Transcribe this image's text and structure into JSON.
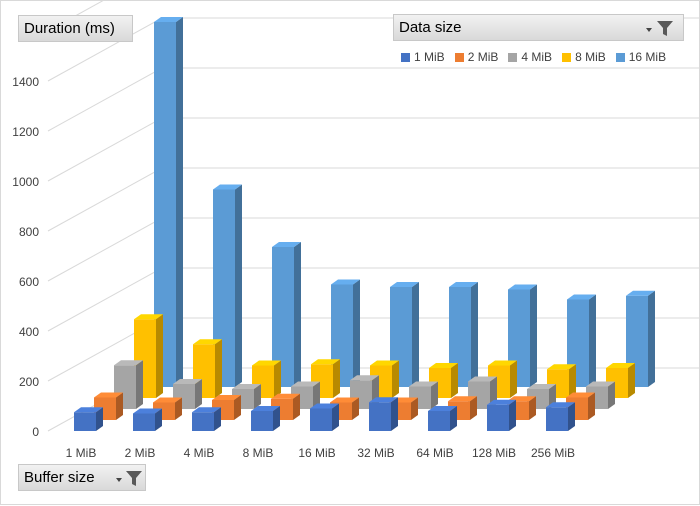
{
  "pivot": {
    "value_button": "Duration (ms)",
    "column_button": "Data size",
    "row_button": "Buffer size"
  },
  "icons": {
    "filter": "filter-funnel-icon",
    "dropdown": "dropdown-arrow-icon"
  },
  "colors": {
    "series": [
      "#4472c4",
      "#ed7d31",
      "#a5a5a5",
      "#ffc000",
      "#5b9bd5"
    ]
  },
  "chart_data": {
    "type": "bar",
    "subtype": "3d-column",
    "categories": [
      "1 MiB",
      "2 MiB",
      "4 MiB",
      "8 MiB",
      "16 MiB",
      "32 MiB",
      "64 MiB",
      "128 MiB",
      "256 MiB"
    ],
    "series": [
      {
        "name": "1 MiB",
        "values": [
          75,
          70,
          75,
          80,
          90,
          115,
          80,
          105,
          95
        ]
      },
      {
        "name": "2 MiB",
        "values": [
          90,
          70,
          80,
          85,
          70,
          70,
          75,
          75,
          90
        ]
      },
      {
        "name": "4 MiB",
        "values": [
          175,
          100,
          80,
          90,
          115,
          90,
          110,
          80,
          90
        ]
      },
      {
        "name": "8 MiB",
        "values": [
          315,
          215,
          130,
          135,
          130,
          120,
          130,
          115,
          120
        ]
      },
      {
        "name": "16 MiB",
        "values": [
          1460,
          790,
          560,
          410,
          400,
          400,
          390,
          350,
          365
        ]
      }
    ],
    "yticks": [
      0,
      200,
      400,
      600,
      800,
      1000,
      1200,
      1400
    ],
    "ylim": [
      0,
      1600
    ],
    "legend_position": "top-right",
    "grid": true
  }
}
